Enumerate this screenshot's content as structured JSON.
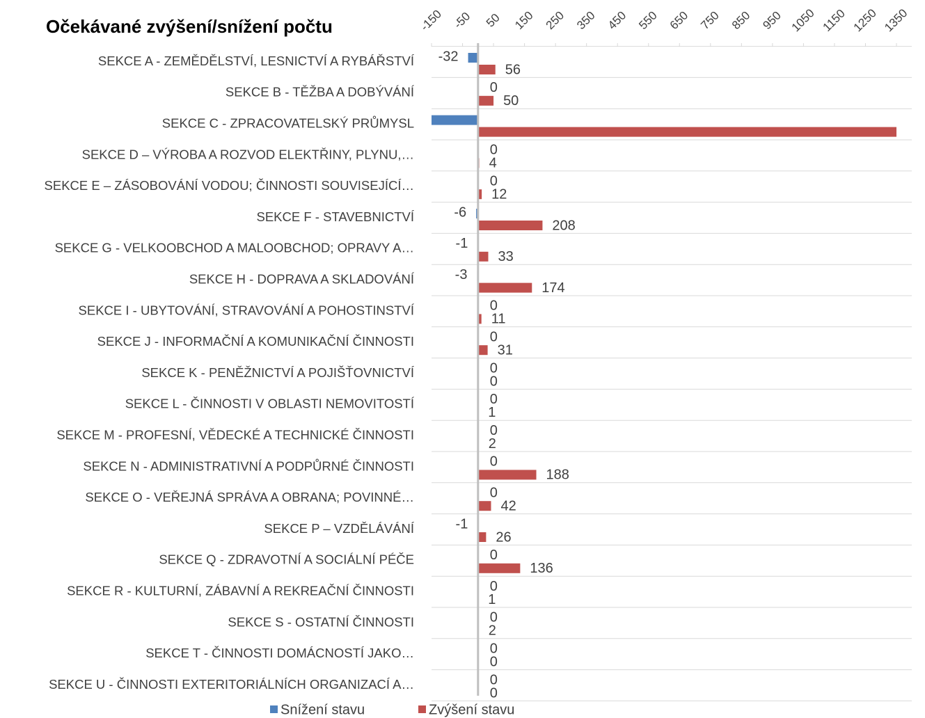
{
  "chart_data": {
    "type": "bar",
    "orientation": "horizontal",
    "title": "Očekávané zvýšení/snížení počtu",
    "categories": [
      "SEKCE A - ZEMĚDĚLSTVÍ, LESNICTVÍ A RYBÁŘSTVÍ",
      "SEKCE B - TĚŽBA A DOBÝVÁNÍ",
      "SEKCE C - ZPRACOVATELSKÝ PRŮMYSL",
      "SEKCE D – VÝROBA A ROZVOD ELEKTŘINY, PLYNU,…",
      "SEKCE E – ZÁSOBOVÁNÍ VODOU; ČINNOSTI SOUVISEJÍCÍ…",
      "SEKCE F - STAVEBNICTVÍ",
      "SEKCE G - VELKOOBCHOD A MALOOBCHOD; OPRAVY A…",
      "SEKCE H - DOPRAVA A SKLADOVÁNÍ",
      "SEKCE I - UBYTOVÁNÍ, STRAVOVÁNÍ A POHOSTINSTVÍ",
      "SEKCE J - INFORMAČNÍ A KOMUNIKAČNÍ ČINNOSTI",
      "SEKCE K - PENĚŽNICTVÍ A POJIŠŤOVNICTVÍ",
      "SEKCE L - ČINNOSTI V OBLASTI NEMOVITOSTÍ",
      "SEKCE M - PROFESNÍ, VĚDECKÉ A TECHNICKÉ ČINNOSTI",
      "SEKCE N - ADMINISTRATIVNÍ A PODPŮRNÉ ČINNOSTI",
      "SEKCE O - VEŘEJNÁ SPRÁVA A OBRANA; POVINNÉ…",
      "SEKCE P – VZDĚLÁVÁNÍ",
      "SEKCE Q - ZDRAVOTNÍ A SOCIÁLNÍ PÉČE",
      "SEKCE R - KULTURNÍ, ZÁBAVNÍ A REKREAČNÍ ČINNOSTI",
      "SEKCE S - OSTATNÍ ČINNOSTI",
      "SEKCE T - ČINNOSTI DOMÁCNOSTÍ JAKO…",
      "SEKCE U - ČINNOSTI EXTERITORIÁLNÍCH ORGANIZACÍ A…"
    ],
    "series": [
      {
        "name": "Snížení stavu",
        "color": "#4f81bd",
        "values": [
          -32,
          0,
          -150,
          0,
          0,
          -6,
          -1,
          -3,
          0,
          0,
          0,
          0,
          0,
          0,
          0,
          -1,
          0,
          0,
          0,
          0,
          0
        ],
        "value_labels": [
          "-32",
          "0",
          null,
          "0",
          "0",
          "-6",
          "-1",
          "-3",
          "0",
          "0",
          "0",
          "0",
          "0",
          "0",
          "0",
          "-1",
          "0",
          "0",
          "0",
          "0",
          "0"
        ]
      },
      {
        "name": "Zvýšení stavu",
        "color": "#c0504d",
        "values": [
          56,
          50,
          1350,
          4,
          12,
          208,
          33,
          174,
          11,
          31,
          0,
          1,
          2,
          188,
          42,
          26,
          136,
          1,
          2,
          0,
          0
        ],
        "value_labels": [
          "56",
          "50",
          null,
          "4",
          "12",
          "208",
          "33",
          "174",
          "11",
          "31",
          "0",
          "1",
          "2",
          "188",
          "42",
          "26",
          "136",
          "1",
          "2",
          "0",
          "0"
        ]
      }
    ],
    "xlim": [
      -150,
      1350
    ],
    "xticks": [
      -150,
      -50,
      50,
      150,
      250,
      350,
      450,
      550,
      650,
      750,
      850,
      950,
      1050,
      1150,
      1250,
      1350
    ],
    "legend": "bottom"
  }
}
